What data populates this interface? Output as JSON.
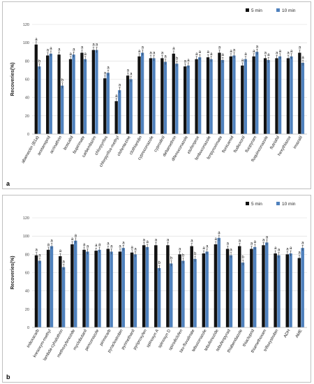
{
  "chart_data": [
    {
      "type": "bar",
      "panel_label": "a",
      "ylabel": "Recoveries(%)",
      "ylim": [
        0,
        120
      ],
      "yticks": [
        0,
        20,
        40,
        60,
        80,
        100,
        120
      ],
      "grid": true,
      "legend_position": "top-right",
      "categories": [
        "abamectin (B1a)",
        "acetamiprid",
        "acrinathrin",
        "boscalid",
        "bupirimate",
        "carbendazim",
        "chlorpyrifos",
        "chlorpyrifos-methyl",
        "clofentezine",
        "clothianidin",
        "cyproconazole",
        "cyprodinil",
        "deltamethrin",
        "difenoconazole",
        "etofenprox",
        "fenbuconazole",
        "fenpyroximate",
        "flonicamid",
        "fludioxonil",
        "fluopyram",
        "fluquinconazole",
        "flutriafol",
        "hexythiazox",
        "imazalil"
      ],
      "series": [
        {
          "name": "5 min",
          "color": "#111111",
          "values": [
            98,
            86,
            87,
            82,
            89,
            92,
            61,
            36,
            64,
            85,
            83,
            83,
            88,
            74,
            82,
            84,
            89,
            85,
            75,
            85,
            83,
            83,
            83,
            89
          ],
          "letters": [
            "a",
            "a",
            "a",
            "a",
            "a",
            "a",
            "a",
            "a",
            "a",
            "a",
            "a",
            "a",
            "a",
            "a",
            "a",
            "a",
            "a",
            "a",
            "a",
            "a",
            "a",
            "a",
            "a",
            "a"
          ]
        },
        {
          "name": "10 min",
          "color": "#4f81bd",
          "values": [
            74,
            88,
            53,
            87,
            82,
            92,
            67,
            48,
            60,
            89,
            83,
            79,
            77,
            75,
            84,
            82,
            81,
            86,
            82,
            90,
            81,
            85,
            85,
            78
          ],
          "letters": [
            "b",
            "a",
            "b",
            "a",
            "a",
            "a",
            "a",
            "a",
            "a",
            "a",
            "a",
            "a",
            "b",
            "a",
            "a",
            "a",
            "a",
            "a",
            "a",
            "a",
            "a",
            "a",
            "a",
            "a"
          ]
        }
      ]
    },
    {
      "type": "bar",
      "panel_label": "b",
      "ylabel": "Recoveries(%)",
      "ylim": [
        0,
        120
      ],
      "yticks": [
        0,
        20,
        40,
        60,
        80,
        100,
        120
      ],
      "grid": true,
      "legend_position": "top-right",
      "categories": [
        "indoxacarb",
        "kresoxym-methyl",
        "lambda-cyhalothrin",
        "methoxyfenozide",
        "myclobutanil",
        "penconazole",
        "pirimicarb",
        "pyraclostrobin",
        "pyrimethanil",
        "pyriproxyfen",
        "spinosyn A",
        "spinosyn D",
        "spirodiclofen",
        "tau-fluvalinate",
        "tebuconazole",
        "tebufenozide",
        "tebufenpyrad",
        "thiabendazole",
        "thiacloprid",
        "thiamethoxam",
        "trifloxystrobin",
        "ADH",
        "AME"
      ],
      "series": [
        {
          "name": "5 min",
          "color": "#111111",
          "values": [
            79,
            85,
            78,
            91,
            85,
            84,
            86,
            83,
            82,
            90,
            90,
            90,
            80,
            89,
            81,
            91,
            86,
            89,
            86,
            90,
            81,
            80,
            76
          ],
          "letters": [
            "a",
            "a",
            "a",
            "a",
            "a",
            "a",
            "a",
            "a",
            "a",
            "a",
            "a",
            "a",
            "a",
            "a",
            "a",
            "a",
            "a",
            "a",
            "a",
            "a",
            "a",
            "a",
            "a"
          ]
        },
        {
          "name": "10 min",
          "color": "#4f81bd",
          "values": [
            73,
            89,
            66,
            95,
            83,
            85,
            83,
            87,
            80,
            88,
            65,
            70,
            73,
            75,
            83,
            98,
            79,
            71,
            88,
            93,
            79,
            81,
            87
          ],
          "letters": [
            "a",
            "a",
            "a",
            "a",
            "a",
            "a",
            "a",
            "a",
            "a",
            "a",
            "b",
            "b",
            "b",
            "b",
            "a",
            "a",
            "a",
            "b",
            "a",
            "a",
            "a",
            "a",
            "a"
          ]
        }
      ]
    }
  ]
}
